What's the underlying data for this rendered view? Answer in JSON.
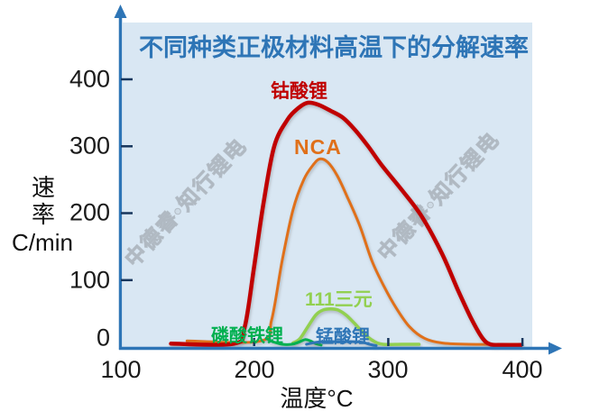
{
  "title": "不同种类正极材料高温下的分解速率",
  "watermark": "中德睿•知行锂电",
  "axes": {
    "y_title_char1": "速",
    "y_title_char2": "率",
    "y_unit": "C/min",
    "x_title": "温度°C",
    "y_ticks": [
      "400",
      "300",
      "200",
      "100",
      "0"
    ],
    "x_ticks": [
      "100",
      "200",
      "300",
      "400"
    ]
  },
  "colors": {
    "title": "#2E75B6",
    "axis": "#2E75B6",
    "tick_mark": "#17365D",
    "plot_background": "#D9E7F3",
    "lco": "#C00000",
    "nca": "#E0701A",
    "nmc111": "#92D050",
    "lfp": "#00B050",
    "lmo": "#2E75B6",
    "watermark": "#9AA0A6"
  },
  "chart_data": {
    "type": "line",
    "title": "不同种类正极材料高温下的分解速率",
    "xlabel": "温度°C",
    "ylabel": "速率 C/min",
    "xlim": [
      100,
      400
    ],
    "ylim": [
      0,
      400
    ],
    "grid": false,
    "legend": "inline-labels",
    "series": [
      {
        "name": "钴酸锂",
        "color": "#C00000",
        "x": [
          138,
          185,
          193,
          200,
          207,
          215,
          225,
          233,
          240,
          248,
          257,
          266,
          275,
          285,
          295,
          310,
          325,
          340,
          352,
          362,
          370,
          376,
          385,
          399
        ],
        "y": [
          5,
          5,
          30,
          120,
          215,
          300,
          340,
          357,
          365,
          362,
          353,
          343,
          325,
          300,
          272,
          235,
          195,
          140,
          85,
          42,
          14,
          4,
          3,
          3
        ]
      },
      {
        "name": "NCA",
        "color": "#E0701A",
        "x": [
          150,
          205,
          213,
          221,
          229,
          237,
          244,
          249,
          255,
          262,
          270,
          279,
          288,
          297,
          306,
          316,
          327,
          340,
          360,
          399
        ],
        "y": [
          9,
          9,
          40,
          130,
          205,
          250,
          272,
          281,
          276,
          256,
          222,
          180,
          128,
          90,
          58,
          30,
          13,
          6,
          4,
          4
        ]
      },
      {
        "name": "111三元",
        "color": "#92D050",
        "x": [
          229,
          234,
          240,
          246,
          251,
          257,
          263,
          269,
          275,
          282,
          289,
          296,
          310,
          323
        ],
        "y": [
          6,
          12,
          30,
          48,
          55,
          57,
          55,
          47,
          35,
          20,
          9,
          4,
          4,
          4
        ]
      },
      {
        "name": "磷酸铁锂",
        "color": "#00B050",
        "x": [
          209,
          214,
          221,
          228,
          233,
          238,
          242,
          246,
          250
        ],
        "y": [
          13,
          8,
          4,
          4,
          7,
          11,
          9,
          5,
          3
        ]
      },
      {
        "name": "锰酸锂",
        "color": "#2E75B6",
        "x": [
          239,
          246,
          253,
          260,
          267,
          274,
          281,
          286,
          291
        ],
        "y": [
          4,
          7,
          8,
          8,
          8,
          8,
          7,
          4,
          2
        ]
      }
    ]
  }
}
